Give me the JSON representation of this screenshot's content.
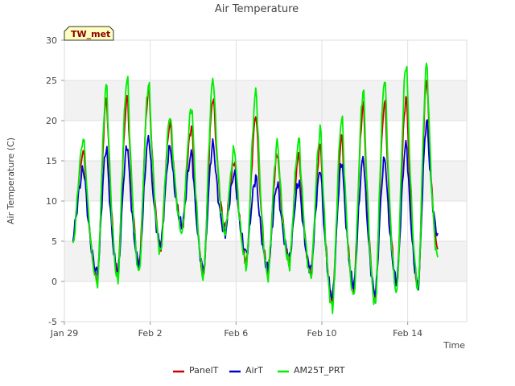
{
  "chart_data": {
    "type": "line",
    "title": "Air Temperature",
    "xlabel": "Time",
    "ylabel": "Air Temperature (C)",
    "badge": "TW_met",
    "xlim": [
      0,
      18.0
    ],
    "ylim": [
      -5,
      30
    ],
    "x_ticks": [
      {
        "x": 0,
        "label": "Jan 29"
      },
      {
        "x": 4,
        "label": "Feb 2"
      },
      {
        "x": 8,
        "label": "Feb 6"
      },
      {
        "x": 12,
        "label": "Feb 10"
      },
      {
        "x": 16,
        "label": "Feb 14"
      }
    ],
    "y_ticks": [
      -5,
      0,
      5,
      10,
      15,
      20,
      25,
      30
    ],
    "grid": true,
    "legend_position": "bottom",
    "daily_min_x": [
      0.4,
      1.55,
      2.5,
      3.5,
      4.5,
      5.5,
      6.5,
      7.5,
      8.5,
      9.5,
      10.5,
      11.5,
      12.5,
      13.5,
      14.5,
      15.5,
      16.5,
      17.4
    ],
    "series": [
      {
        "name": "PanelT",
        "color": "#cc0000",
        "peaks": [
          16.2,
          22.8,
          23.0,
          24.0,
          19.8,
          19.4,
          23.0,
          15.0,
          20.8,
          16.0,
          15.8,
          17.0,
          18.0,
          22.0,
          22.5,
          23.0,
          25.3
        ],
        "mins": [
          4.8,
          0.2,
          0.8,
          2.0,
          4.2,
          6.5,
          0.8,
          6.8,
          2.5,
          1.0,
          2.5,
          1.0,
          -2.5,
          -1.0,
          -2.2,
          -0.5,
          -0.8,
          4.0
        ]
      },
      {
        "name": "AirT",
        "color": "#0000cc",
        "peaks": [
          14.0,
          16.7,
          17.0,
          18.0,
          16.8,
          16.0,
          17.2,
          13.5,
          13.0,
          12.2,
          12.5,
          14.0,
          15.0,
          15.5,
          15.5,
          17.2,
          20.0
        ],
        "mins": [
          5.5,
          1.0,
          1.0,
          2.0,
          4.5,
          7.0,
          1.5,
          6.0,
          3.5,
          1.5,
          3.0,
          1.5,
          -2.0,
          -0.5,
          -1.5,
          0.0,
          -0.5,
          6.0
        ]
      },
      {
        "name": "AM25T_PRT",
        "color": "#00ee00",
        "peaks": [
          17.8,
          24.5,
          25.6,
          24.8,
          20.8,
          21.8,
          25.4,
          16.5,
          23.8,
          17.3,
          17.7,
          19.0,
          20.5,
          24.0,
          25.5,
          27.3,
          27.2
        ],
        "mins": [
          4.2,
          -0.3,
          0.0,
          1.0,
          3.5,
          6.0,
          0.5,
          6.0,
          2.0,
          0.5,
          2.0,
          0.5,
          -3.5,
          -2.0,
          -3.0,
          -1.5,
          -1.0,
          3.0
        ]
      }
    ]
  }
}
